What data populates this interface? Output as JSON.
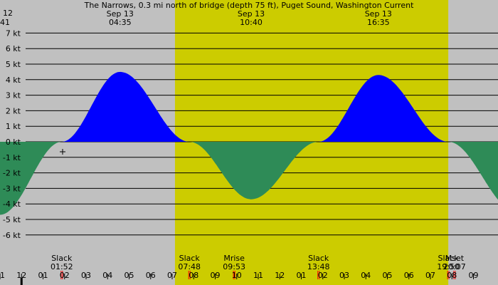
{
  "title": "The Narrows, 0.3 mi north of bridge (depth 75 ft), Puget Sound, Washington Current",
  "corner_label": {
    "line1": "12",
    "line2": "41"
  },
  "colors": {
    "night": "#c0c0c0",
    "day": "#cccc00",
    "flood": "#0000ff",
    "ebb": "#2e8b57",
    "hour_tick": "#000000",
    "event_tick": "#ff0000",
    "midnight_tick": "#000000"
  },
  "daylight": {
    "start_hour": 7.13,
    "end_hour": 19.83
  },
  "peak_labels": [
    {
      "date": "Sep 13",
      "time": "04:35",
      "hour": 4.58
    },
    {
      "date": "Sep 13",
      "time": "10:40",
      "hour": 10.67
    },
    {
      "date": "Sep 13",
      "time": "16:35",
      "hour": 16.58
    }
  ],
  "event_labels": [
    {
      "name": "Slack",
      "time": "01:52",
      "hour": 1.87
    },
    {
      "name": "Slack",
      "time": "07:48",
      "hour": 7.8
    },
    {
      "name": "Mrise",
      "time": "09:53",
      "hour": 9.88
    },
    {
      "name": "Slack",
      "time": "13:48",
      "hour": 13.8
    },
    {
      "name": "Slack",
      "time": "19:50",
      "hour": 19.83
    },
    {
      "name": "Mset",
      "time": "20:07",
      "hour": 20.12
    }
  ],
  "hour_labels": [
    "11",
    "12",
    "01",
    "02",
    "03",
    "04",
    "05",
    "06",
    "07",
    "08",
    "09",
    "10",
    "11",
    "12",
    "01",
    "02",
    "03",
    "04",
    "05",
    "06",
    "07",
    "08",
    "09"
  ],
  "chart_data": {
    "type": "area",
    "x_start_hour": -1,
    "x_end_hour": 22.14,
    "ylim": [
      -6.9,
      7.4
    ],
    "y_ticks": [
      {
        "value": 7,
        "label": "7 kt"
      },
      {
        "value": 6,
        "label": "6 kt"
      },
      {
        "value": 5,
        "label": "5 kt"
      },
      {
        "value": 4,
        "label": "4 kt"
      },
      {
        "value": 3,
        "label": "3 kt"
      },
      {
        "value": 2,
        "label": "2 kt"
      },
      {
        "value": 1,
        "label": "1 kt"
      },
      {
        "value": 0,
        "label": "0 kt"
      },
      {
        "value": -1,
        "label": "-1 kt"
      },
      {
        "value": -2,
        "label": "-2 kt"
      },
      {
        "value": -3,
        "label": "-3 kt"
      },
      {
        "value": -4,
        "label": "-4 kt"
      },
      {
        "value": -5,
        "label": "-5 kt"
      },
      {
        "value": -6,
        "label": "-6 kt"
      }
    ],
    "events": [
      {
        "hour": -1.0,
        "kind": "ebb",
        "speed": -4.7
      },
      {
        "hour": 1.87,
        "kind": "slack",
        "speed": 0
      },
      {
        "hour": 4.58,
        "kind": "flood",
        "speed": 4.5
      },
      {
        "hour": 7.8,
        "kind": "slack",
        "speed": 0
      },
      {
        "hour": 10.67,
        "kind": "ebb",
        "speed": -3.7
      },
      {
        "hour": 13.8,
        "kind": "slack",
        "speed": 0
      },
      {
        "hour": 16.58,
        "kind": "flood",
        "speed": 4.3
      },
      {
        "hour": 19.83,
        "kind": "slack",
        "speed": 0
      },
      {
        "hour": 23.0,
        "kind": "ebb",
        "speed": -4.5
      }
    ]
  }
}
